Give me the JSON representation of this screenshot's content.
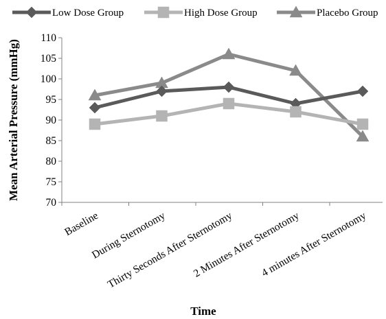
{
  "chart_data": {
    "type": "line",
    "xlabel": "Time",
    "ylabel": "Mean Arterial Pressure (mmHg)",
    "categories": [
      "Baseline",
      "During Sternotomy",
      "Thirty Seconds After Sternotomy",
      "2 Minutes After Sternotomy",
      "4 minutes After Sternotomy"
    ],
    "ylim": [
      70,
      110
    ],
    "yticks": [
      70,
      75,
      80,
      85,
      90,
      95,
      100,
      105,
      110
    ],
    "grid": false,
    "legend_position": "top",
    "series": [
      {
        "name": "Low Dose Group",
        "values": [
          93,
          97,
          98,
          94,
          97
        ],
        "color": "#5a5a5a",
        "marker": "diamond"
      },
      {
        "name": "High Dose Group",
        "values": [
          89,
          91,
          94,
          92,
          89
        ],
        "color": "#b4b4b4",
        "marker": "square"
      },
      {
        "name": "Placebo Group",
        "values": [
          96,
          99,
          106,
          102,
          86
        ],
        "color": "#8a8a8a",
        "marker": "triangle"
      }
    ]
  }
}
